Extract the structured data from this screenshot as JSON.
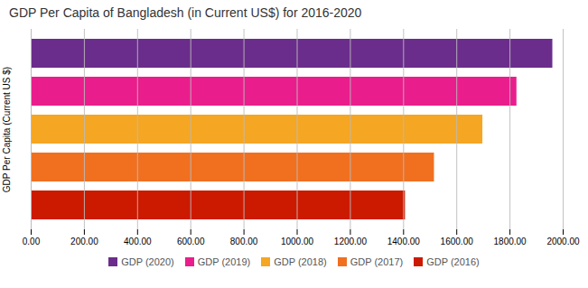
{
  "chart_data": {
    "type": "bar",
    "orientation": "horizontal",
    "title": "GDP Per Capita of Bangladesh (in Current US$) for 2016-2020",
    "ylabel": "GDP Per Capita (Current US $)",
    "categories": [
      "GDP (2020)",
      "GDP (2019)",
      "GDP (2018)",
      "GDP (2017)",
      "GDP (2016)"
    ],
    "values": [
      1961,
      1826,
      1698,
      1516,
      1407
    ],
    "colors": [
      "#6B2D8B",
      "#E91E8C",
      "#F5A623",
      "#F07020",
      "#CC1A00"
    ],
    "xlim": [
      0,
      2000
    ],
    "xticks": [
      {
        "value": 0,
        "label": "0.00"
      },
      {
        "value": 200,
        "label": "200.00"
      },
      {
        "value": 400,
        "label": "400.00"
      },
      {
        "value": 600,
        "label": "600.00"
      },
      {
        "value": 800,
        "label": "800.00"
      },
      {
        "value": 1000,
        "label": "1000.00"
      },
      {
        "value": 1200,
        "label": "1200.00"
      },
      {
        "value": 1400,
        "label": "1400.00"
      },
      {
        "value": 1600,
        "label": "1600.00"
      },
      {
        "value": 1800,
        "label": "1800.00"
      },
      {
        "value": 2000,
        "label": "2000.00"
      }
    ],
    "grid": true,
    "tick_labels": "x",
    "legend": "bottom"
  }
}
